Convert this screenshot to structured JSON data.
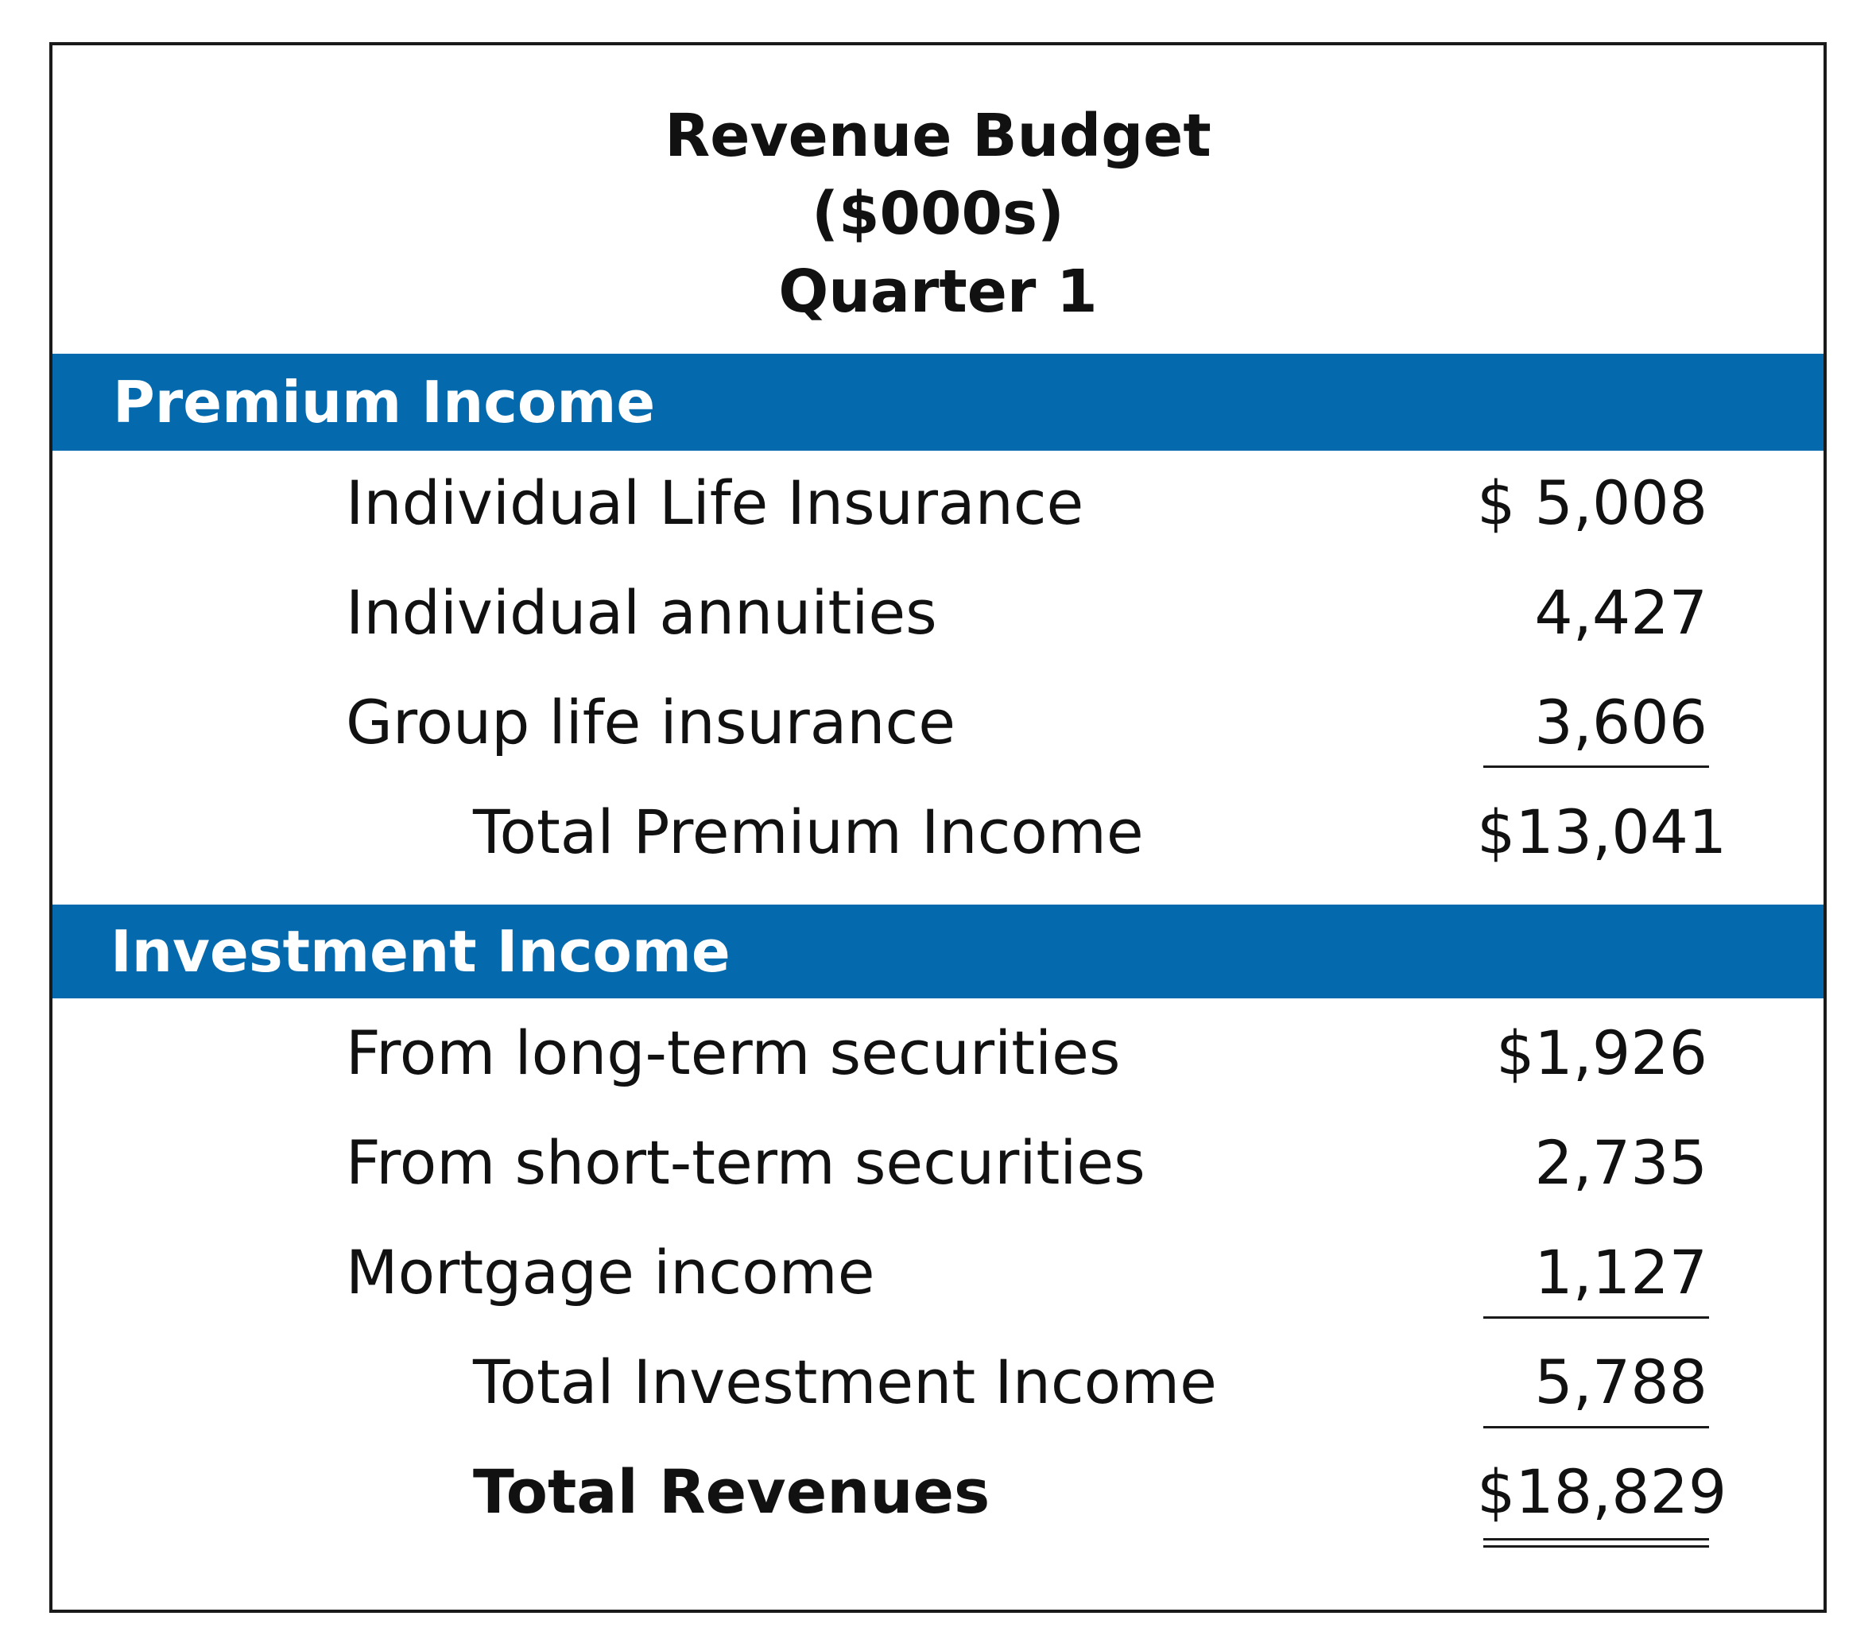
{
  "header": {
    "title": "Revenue Budget",
    "units": "($000s)",
    "period": "Quarter 1"
  },
  "premium": {
    "heading": "Premium Income",
    "items": [
      {
        "label": "Individual Life Insurance",
        "amount": "$ 5,008"
      },
      {
        "label": "Individual annuities",
        "amount": "4,427"
      },
      {
        "label": "Group life insurance",
        "amount": "3,606"
      }
    ],
    "total": {
      "label": "Total Premium Income",
      "amount": "$13,041"
    }
  },
  "investment": {
    "heading": "Investment Income",
    "items": [
      {
        "label": "From long-term securities",
        "amount": "$1,926"
      },
      {
        "label": "From short-term securities",
        "amount": "2,735"
      },
      {
        "label": "Mortgage income",
        "amount": "1,127"
      }
    ],
    "total": {
      "label": "Total Investment Income",
      "amount": "5,788"
    }
  },
  "grand_total": {
    "label": "Total Revenues",
    "amount": "$18,829"
  },
  "colors": {
    "band": "#046aad",
    "band_text": "#ffffff",
    "text": "#111111"
  }
}
